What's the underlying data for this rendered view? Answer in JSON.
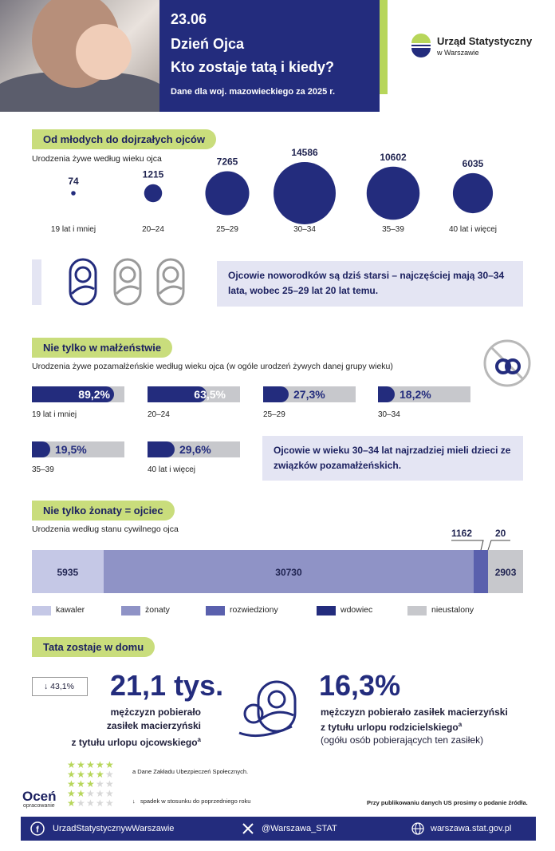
{
  "header": {
    "date": "23.06",
    "title_line1": "Dzień Ojca",
    "title_line2": "Kto zostaje tatą i kiedy?",
    "subtitle": "Dane dla woj. mazowieckiego za 2025 r.",
    "logo_name": "Urząd Statystyczny",
    "logo_city": "w Warszawie",
    "colors": {
      "navy": "#232c7d",
      "accent": "#b7d65a",
      "pill": "#c9dd7c"
    }
  },
  "section1": {
    "pill": "Od młodych do dojrzałych ojców",
    "caption": "Urodzenia żywe według wieku ojca",
    "info": "Ojcowie noworodków są dziś starsi – najczęściej mają 30–34 lata, wobec 25–29 lat 20 lat temu."
  },
  "section2": {
    "pill": "Nie tylko w małżeństwie",
    "caption": "Urodzenia żywe pozamałżeńskie według wieku ojca (w ogóle urodzeń żywych danej grupy wieku)",
    "info": "Ojcowie w wieku 30–34 lat najrzadziej mieli dzieci ze związków pozamałżeńskich."
  },
  "section3": {
    "pill": "Nie tylko żonaty = ojciec",
    "caption": "Urodzenia według stanu cywilnego ojca"
  },
  "section4": {
    "pill": "Tata zostaje w domu",
    "change": "43,1%",
    "big1": "21,1 tys.",
    "desc1": [
      "mężczyzn pobierało",
      "zasiłek macierzyński",
      "z tytułu urlopu ojcowskiego"
    ],
    "sup": "a",
    "big2": "16,3%",
    "desc2": [
      "mężczyzn pobierało zasiłek macierzyński",
      "z tytułu urlopu rodzicielskiego",
      "(ogółu osób pobierających ten zasiłek)"
    ],
    "foot_a": "a Dane Zakładu Ubezpieczeń Społecznych.",
    "foot_b": "spadek w stosunku do poprzedniego roku",
    "source_note": "Przy publikowaniu danych US prosimy o podanie źródła.",
    "rate_title": "Oceń",
    "rate_sub": "opracowanie"
  },
  "footer": {
    "facebook": "UrzadStatystycznywWarszawie",
    "x": "@Warszawa_STAT",
    "web": "warszawa.stat.gov.pl"
  },
  "chart_data": [
    {
      "type": "scatter",
      "subtype": "bubble",
      "categories": [
        "19 lat i mniej",
        "20–24",
        "25–29",
        "30–34",
        "35–39",
        "40 lat i więcej"
      ],
      "values": [
        74,
        1215,
        7265,
        14586,
        10602,
        6035
      ],
      "color": "#232c7d"
    },
    {
      "type": "bar",
      "categories": [
        "19 lat i mniej",
        "20–24",
        "25–29",
        "30–34",
        "35–39",
        "40 lat i więcej"
      ],
      "values": [
        89.2,
        63.5,
        27.3,
        18.2,
        19.5,
        29.6
      ],
      "labels": [
        "89,2%",
        "63,5%",
        "27,3%",
        "18,2%",
        "19,5%",
        "29,6%"
      ],
      "ylim": [
        0,
        100
      ]
    },
    {
      "type": "bar",
      "subtype": "stacked-horizontal",
      "categories": [
        "kawaler",
        "żonaty",
        "rozwiedziony",
        "wdowiec",
        "nieustalony"
      ],
      "values": [
        5935,
        30730,
        1162,
        20,
        2903
      ],
      "labels": [
        "5935",
        "30730",
        "1162",
        "20",
        "2903"
      ],
      "colors": [
        "#c5c8e6",
        "#8f93c6",
        "#5a60ad",
        "#232c7d",
        "#c7c8cc"
      ],
      "legend": "bottom"
    }
  ]
}
